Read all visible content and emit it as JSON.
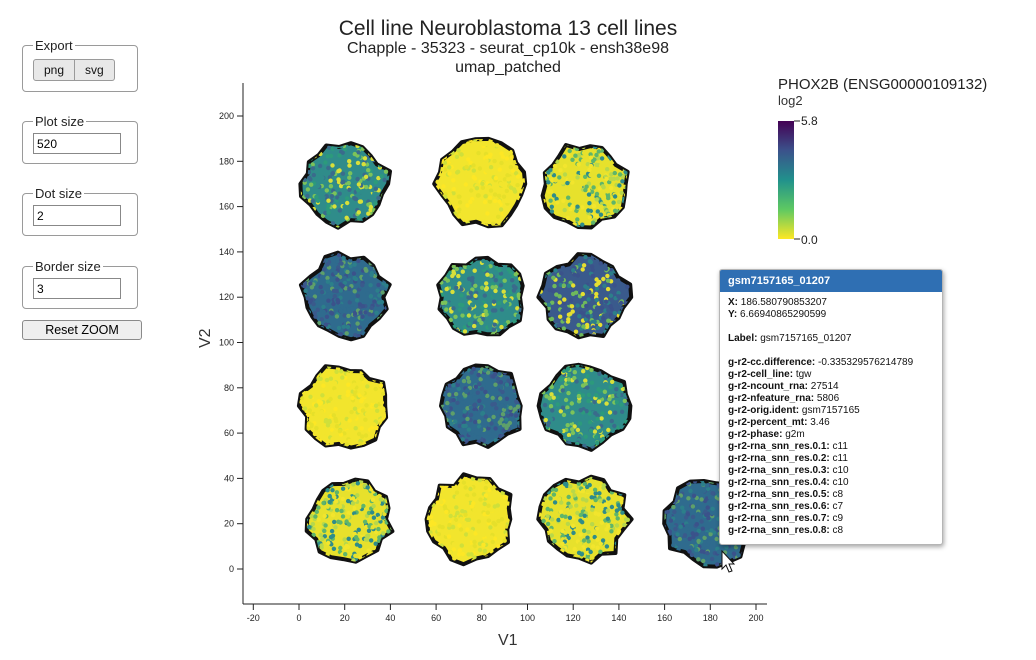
{
  "controls": {
    "export": {
      "legend": "Export",
      "buttons": [
        "png",
        "svg"
      ]
    },
    "plot_size": {
      "legend": "Plot size",
      "value": "520"
    },
    "dot_size": {
      "legend": "Dot size",
      "value": "2"
    },
    "border_size": {
      "legend": "Border size",
      "value": "3"
    },
    "reset_zoom": "Reset ZOOM"
  },
  "plot": {
    "title": "Cell line Neuroblastoma 13 cell lines",
    "subtitle": "Chapple - 35323 - seurat_cp10k - ensh38e98",
    "subtitle2": "umap_patched",
    "xlabel": "V1",
    "ylabel": "V2",
    "x_ticks": [
      "-20",
      "0",
      "20",
      "40",
      "60",
      "80",
      "100",
      "120",
      "140",
      "160",
      "180",
      "200"
    ],
    "y_ticks": [
      "0",
      "20",
      "40",
      "60",
      "80",
      "100",
      "120",
      "140",
      "160",
      "180",
      "200"
    ]
  },
  "legend": {
    "title": "PHOX2B (ENSG00000109132)",
    "unit": "log2",
    "max_label": "5.8",
    "min_label": "0.0",
    "colors": [
      "#440154",
      "#3b528b",
      "#21918c",
      "#5ec962",
      "#fde725"
    ]
  },
  "tooltip": {
    "header": "gsm7157165_01207",
    "x_label": "X:",
    "x_value": "186.580790853207",
    "y_label": "Y:",
    "y_value": "6.66940865290599",
    "label_key": "Label:",
    "label_value": "gsm7157165_01207",
    "fields": [
      {
        "key": "g-r2-cc.difference:",
        "value": "-0.335329576214789"
      },
      {
        "key": "g-r2-cell_line:",
        "value": "tgw"
      },
      {
        "key": "g-r2-ncount_rna:",
        "value": "27514"
      },
      {
        "key": "g-r2-nfeature_rna:",
        "value": "5806"
      },
      {
        "key": "g-r2-orig.ident:",
        "value": "gsm7157165"
      },
      {
        "key": "g-r2-percent_mt:",
        "value": "3.46"
      },
      {
        "key": "g-r2-phase:",
        "value": "g2m"
      },
      {
        "key": "g-r2-rna_snn_res.0.1:",
        "value": "c11"
      },
      {
        "key": "g-r2-rna_snn_res.0.2:",
        "value": "c11"
      },
      {
        "key": "g-r2-rna_snn_res.0.3:",
        "value": "c10"
      },
      {
        "key": "g-r2-rna_snn_res.0.4:",
        "value": "c10"
      },
      {
        "key": "g-r2-rna_snn_res.0.5:",
        "value": "c8"
      },
      {
        "key": "g-r2-rna_snn_res.0.6:",
        "value": "c7"
      },
      {
        "key": "g-r2-rna_snn_res.0.7:",
        "value": "c9"
      },
      {
        "key": "g-r2-rna_snn_res.0.8:",
        "value": "c8"
      }
    ]
  },
  "clusters": [
    {
      "center": [
        20,
        170
      ],
      "dominant": "mixed-teal"
    },
    {
      "center": [
        80,
        170
      ],
      "dominant": "yellow"
    },
    {
      "center": [
        125,
        170
      ],
      "dominant": "mixed-yellow"
    },
    {
      "center": [
        20,
        120
      ],
      "dominant": "blue"
    },
    {
      "center": [
        80,
        120
      ],
      "dominant": "mixed-teal"
    },
    {
      "center": [
        125,
        120
      ],
      "dominant": "mixed-blue"
    },
    {
      "center": [
        20,
        72
      ],
      "dominant": "yellow"
    },
    {
      "center": [
        80,
        72
      ],
      "dominant": "blue"
    },
    {
      "center": [
        125,
        72
      ],
      "dominant": "mixed-teal"
    },
    {
      "center": [
        22,
        22
      ],
      "dominant": "mixed-yellow"
    },
    {
      "center": [
        75,
        22
      ],
      "dominant": "yellow"
    },
    {
      "center": [
        125,
        22
      ],
      "dominant": "mixed-yellow"
    },
    {
      "center": [
        180,
        20
      ],
      "dominant": "blue"
    }
  ]
}
